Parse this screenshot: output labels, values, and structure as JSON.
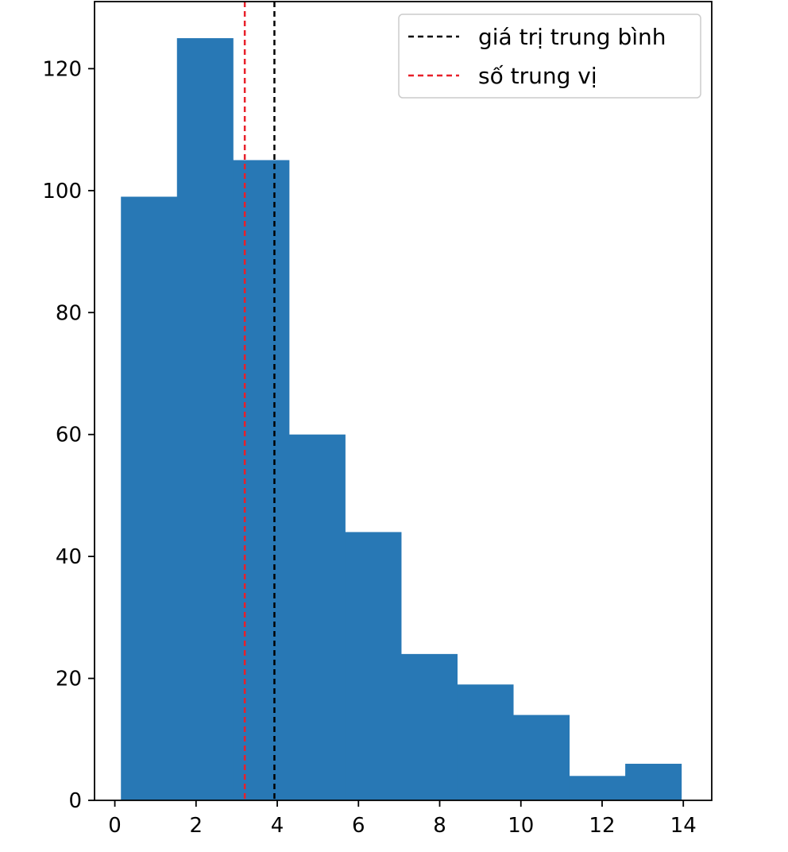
{
  "chart_data": {
    "type": "bar",
    "subtype": "histogram",
    "title": "",
    "xlabel": "",
    "ylabel": "",
    "xlim": [
      -0.5,
      14.7
    ],
    "ylim": [
      0,
      131
    ],
    "xticks": [
      0,
      2,
      4,
      6,
      8,
      10,
      12,
      14
    ],
    "yticks": [
      0,
      20,
      40,
      60,
      80,
      100,
      120
    ],
    "bins": [
      {
        "x0": 0.15,
        "x1": 1.53,
        "count": 99
      },
      {
        "x0": 1.53,
        "x1": 2.91,
        "count": 125
      },
      {
        "x0": 2.91,
        "x1": 4.29,
        "count": 105
      },
      {
        "x0": 4.29,
        "x1": 5.67,
        "count": 60
      },
      {
        "x0": 5.67,
        "x1": 7.05,
        "count": 44
      },
      {
        "x0": 7.05,
        "x1": 8.43,
        "count": 24
      },
      {
        "x0": 8.43,
        "x1": 9.81,
        "count": 19
      },
      {
        "x0": 9.81,
        "x1": 11.19,
        "count": 14
      },
      {
        "x0": 11.19,
        "x1": 12.57,
        "count": 4
      },
      {
        "x0": 12.57,
        "x1": 13.95,
        "count": 6
      }
    ],
    "bar_color": "#2878b5",
    "reference_lines": [
      {
        "name": "giá trị trung bình",
        "x": 3.93,
        "color": "#000000",
        "style": "dashed"
      },
      {
        "name": "số trung vị",
        "x": 3.2,
        "color": "#e8202a",
        "style": "dashed"
      }
    ],
    "legend": {
      "position": "top-right",
      "entries": [
        "giá trị trung bình",
        "số trung vị"
      ]
    },
    "grid": false
  }
}
